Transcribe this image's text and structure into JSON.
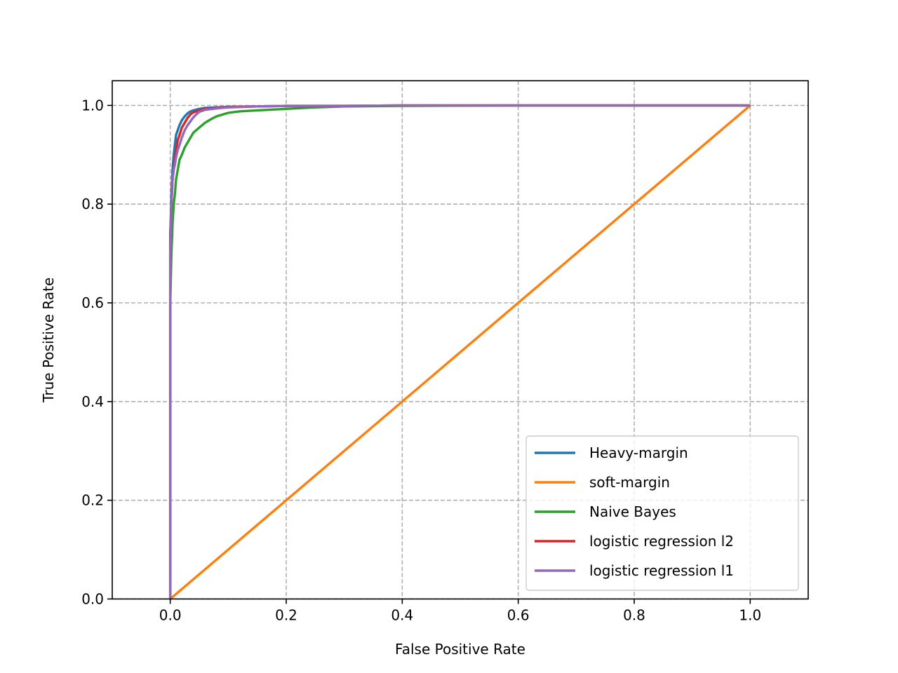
{
  "chart_data": {
    "type": "line",
    "title": "",
    "xlabel": "False Positive Rate",
    "ylabel": "True Positive Rate",
    "xlim": [
      -0.1,
      1.1
    ],
    "ylim": [
      0.0,
      1.05
    ],
    "xticks": [
      0.0,
      0.2,
      0.4,
      0.6,
      0.8,
      1.0
    ],
    "yticks": [
      0.0,
      0.2,
      0.4,
      0.6,
      0.8,
      1.0
    ],
    "xtick_labels": [
      "0.0",
      "0.2",
      "0.4",
      "0.6",
      "0.8",
      "1.0"
    ],
    "ytick_labels": [
      "0.0",
      "0.2",
      "0.4",
      "0.6",
      "0.8",
      "1.0"
    ],
    "grid": true,
    "legend_position": "lower-right",
    "series": [
      {
        "name": "Heavy-margin",
        "color": "#1f77b4",
        "x": [
          0,
          0,
          0.002,
          0.004,
          0.006,
          0.008,
          0.01,
          0.013,
          0.016,
          0.02,
          0.025,
          0.03,
          0.035,
          0.04,
          0.05,
          0.06,
          0.08,
          0.1,
          0.15,
          0.2,
          0.3,
          0.4,
          0.6,
          0.8,
          1.0
        ],
        "y": [
          0,
          0.72,
          0.82,
          0.87,
          0.9,
          0.92,
          0.94,
          0.95,
          0.96,
          0.97,
          0.978,
          0.984,
          0.988,
          0.99,
          0.993,
          0.995,
          0.996,
          0.997,
          0.998,
          0.999,
          0.999,
          1.0,
          1.0,
          1.0,
          1.0
        ]
      },
      {
        "name": "soft-margin",
        "color": "#ff7f0e",
        "x": [
          0,
          1.0
        ],
        "y": [
          0,
          1.0
        ]
      },
      {
        "name": "Naive Bayes",
        "color": "#2ca02c",
        "x": [
          0,
          0,
          0.002,
          0.004,
          0.006,
          0.008,
          0.01,
          0.013,
          0.016,
          0.02,
          0.025,
          0.03,
          0.035,
          0.04,
          0.05,
          0.06,
          0.07,
          0.08,
          0.1,
          0.12,
          0.15,
          0.2,
          0.25,
          0.3,
          0.4,
          0.6,
          0.8,
          1.0
        ],
        "y": [
          0,
          0.6,
          0.7,
          0.76,
          0.8,
          0.82,
          0.85,
          0.87,
          0.89,
          0.9,
          0.915,
          0.925,
          0.935,
          0.945,
          0.955,
          0.965,
          0.972,
          0.978,
          0.985,
          0.988,
          0.99,
          0.993,
          0.996,
          0.998,
          0.999,
          1.0,
          1.0,
          1.0
        ]
      },
      {
        "name": "logistic regression l2",
        "color": "#d62728",
        "x": [
          0,
          0,
          0.002,
          0.004,
          0.006,
          0.008,
          0.01,
          0.013,
          0.016,
          0.02,
          0.025,
          0.03,
          0.035,
          0.04,
          0.05,
          0.06,
          0.08,
          0.1,
          0.15,
          0.2,
          0.3,
          0.4,
          0.6,
          0.8,
          1.0
        ],
        "y": [
          0,
          0.74,
          0.8,
          0.85,
          0.87,
          0.89,
          0.91,
          0.93,
          0.94,
          0.955,
          0.965,
          0.975,
          0.982,
          0.986,
          0.99,
          0.993,
          0.995,
          0.997,
          0.998,
          0.999,
          0.999,
          1.0,
          1.0,
          1.0,
          1.0
        ]
      },
      {
        "name": "logistic regression l1",
        "color": "#9467bd",
        "x": [
          0,
          0,
          0.002,
          0.004,
          0.006,
          0.008,
          0.01,
          0.013,
          0.016,
          0.02,
          0.025,
          0.03,
          0.035,
          0.04,
          0.045,
          0.05,
          0.06,
          0.08,
          0.1,
          0.15,
          0.2,
          0.3,
          0.4,
          0.6,
          0.8,
          1.0
        ],
        "y": [
          0,
          0.7,
          0.8,
          0.85,
          0.87,
          0.88,
          0.895,
          0.91,
          0.92,
          0.935,
          0.95,
          0.96,
          0.968,
          0.976,
          0.982,
          0.987,
          0.991,
          0.994,
          0.996,
          0.998,
          0.999,
          0.999,
          1.0,
          1.0,
          1.0,
          1.0
        ]
      }
    ]
  }
}
